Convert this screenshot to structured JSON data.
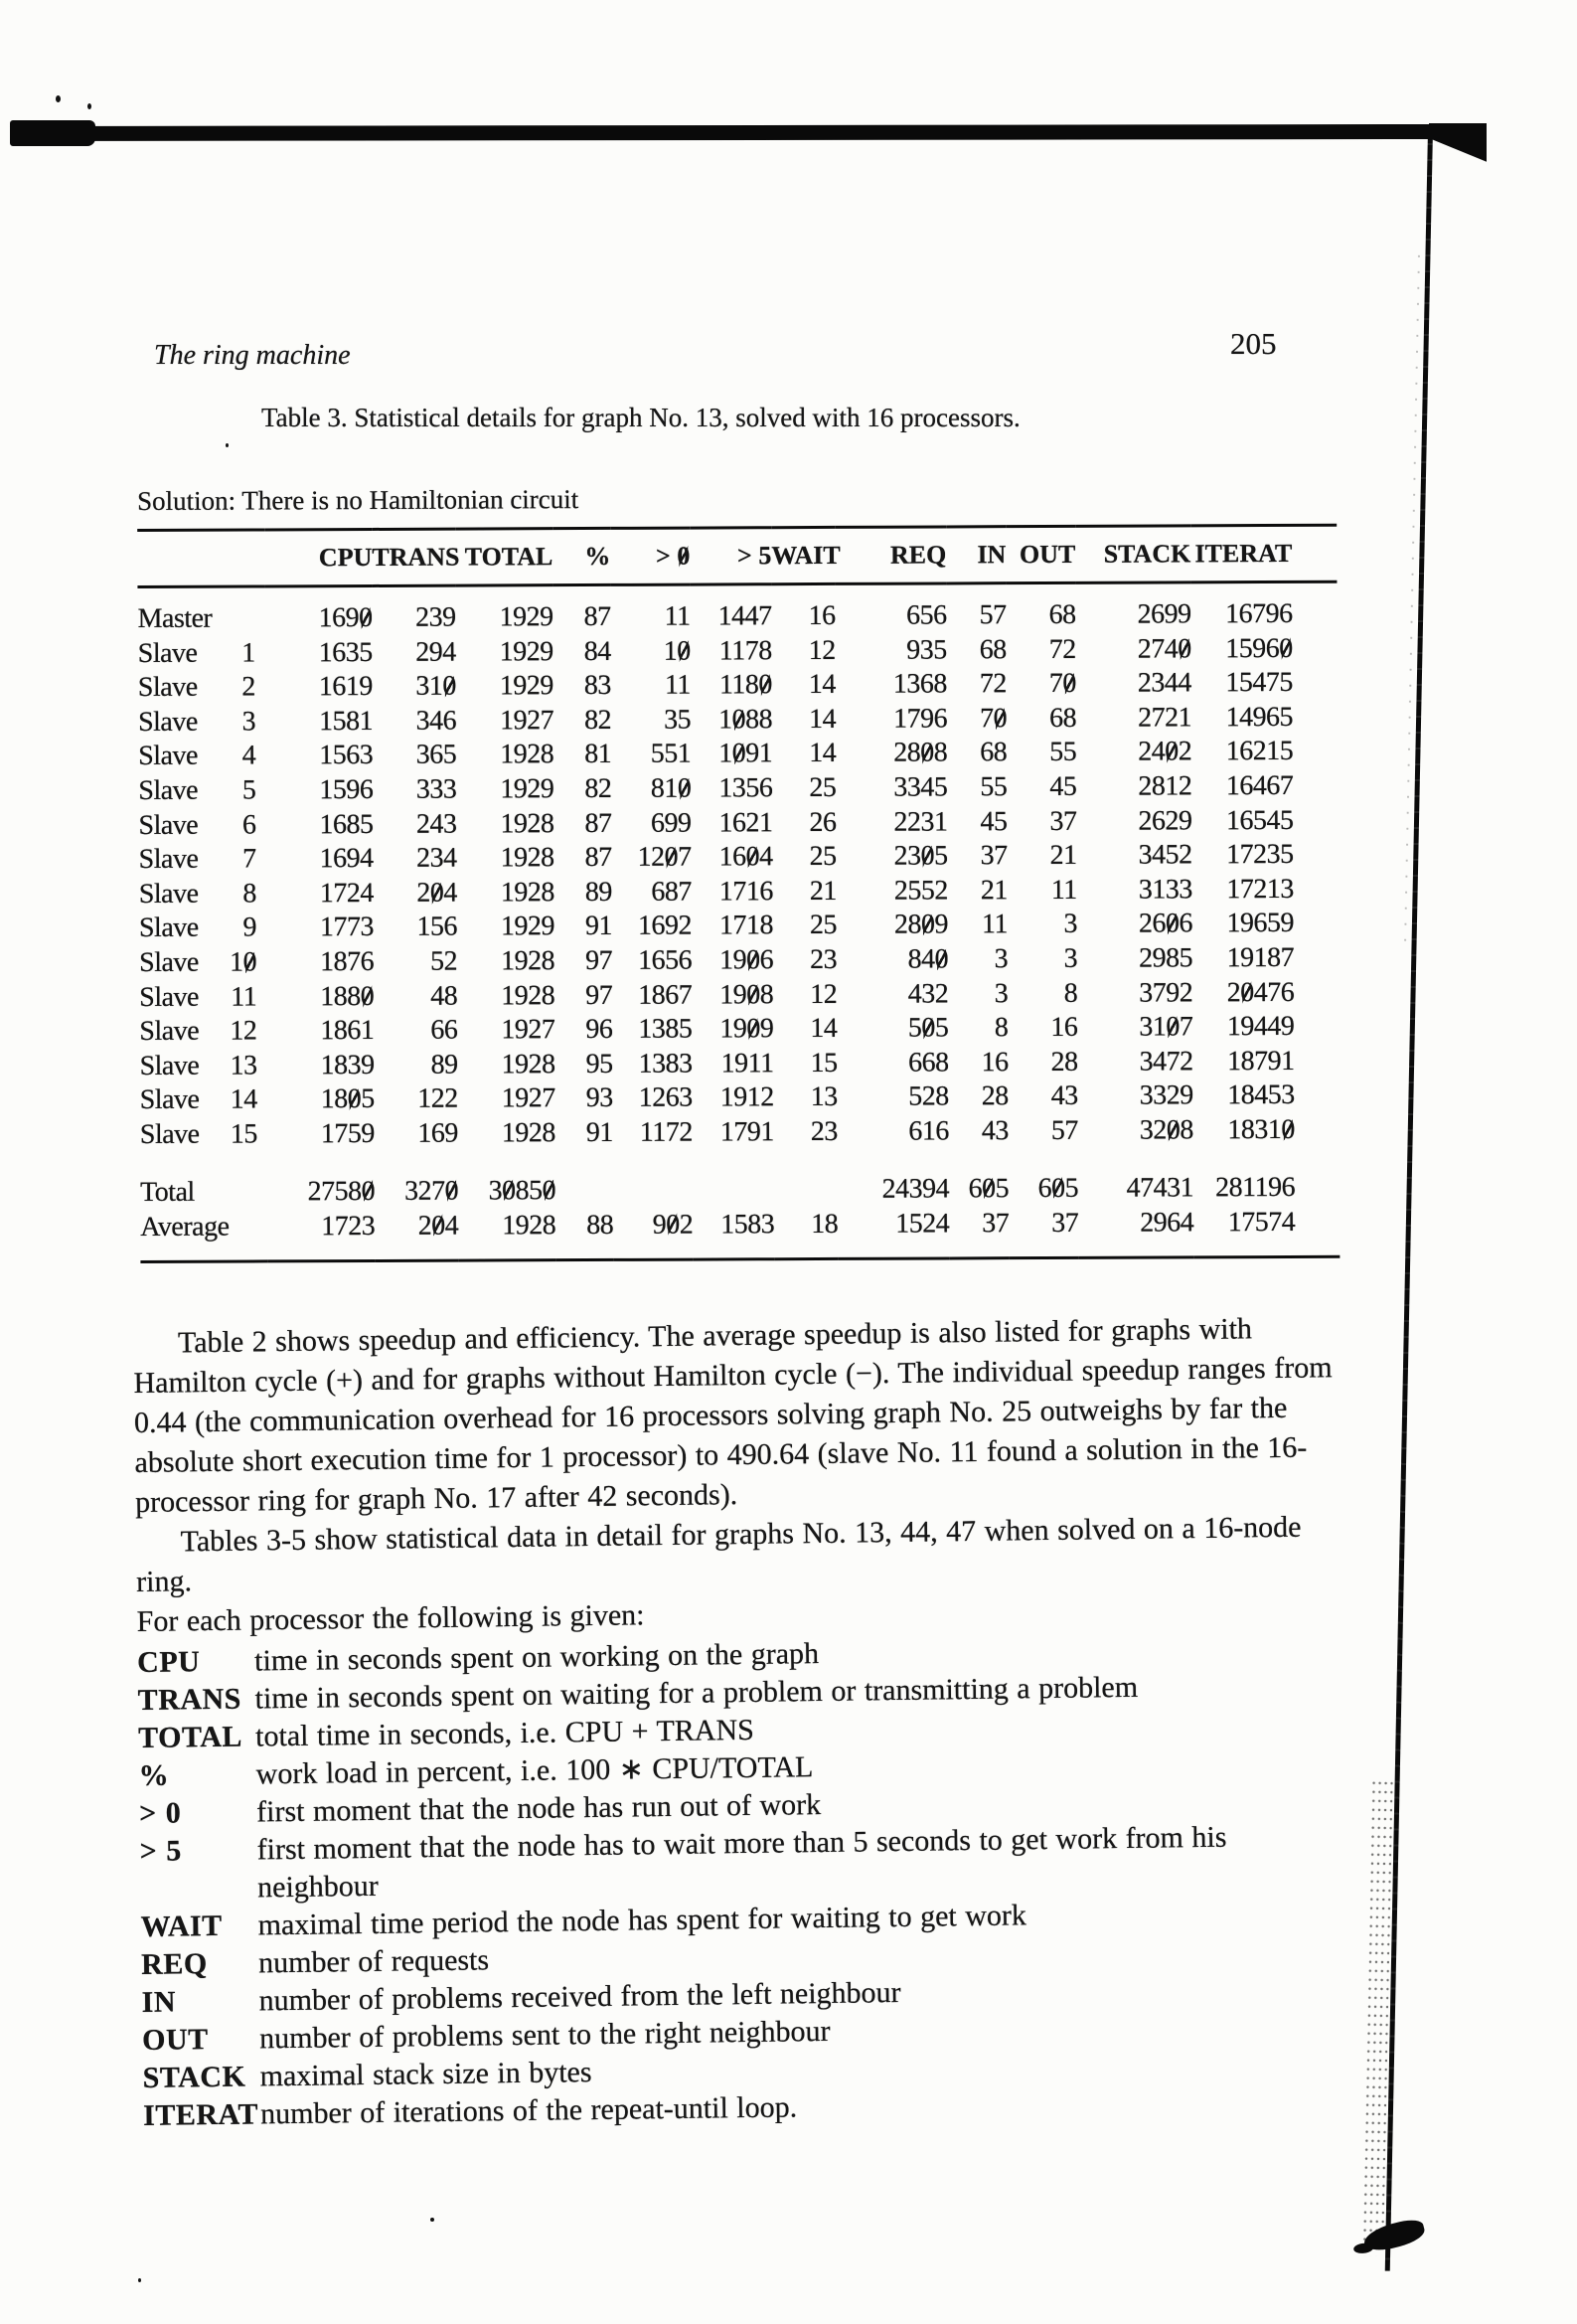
{
  "page": {
    "running_header": "The ring machine",
    "page_number": "205",
    "caption": "Table 3. Statistical details for graph No. 13, solved with 16 processors.",
    "solution_line": "Solution: There is no Hamiltonian circuit"
  },
  "table": {
    "columns": [
      "",
      "CPU",
      "TRANS",
      "TOTAL",
      "%",
      "> 0",
      "> 5",
      "WAIT",
      "REQ",
      "IN",
      "OUT",
      "STACK",
      "ITERAT"
    ],
    "rows": [
      {
        "name": "Master",
        "num": "",
        "values": [
          "1690",
          "239",
          "1929",
          "87",
          "11",
          "1447",
          "16",
          "656",
          "57",
          "68",
          "2699",
          "16796"
        ]
      },
      {
        "name": "Slave",
        "num": "1",
        "values": [
          "1635",
          "294",
          "1929",
          "84",
          "10",
          "1178",
          "12",
          "935",
          "68",
          "72",
          "2740",
          "15960"
        ]
      },
      {
        "name": "Slave",
        "num": "2",
        "values": [
          "1619",
          "310",
          "1929",
          "83",
          "11",
          "1180",
          "14",
          "1368",
          "72",
          "70",
          "2344",
          "15475"
        ]
      },
      {
        "name": "Slave",
        "num": "3",
        "values": [
          "1581",
          "346",
          "1927",
          "82",
          "35",
          "1088",
          "14",
          "1796",
          "70",
          "68",
          "2721",
          "14965"
        ]
      },
      {
        "name": "Slave",
        "num": "4",
        "values": [
          "1563",
          "365",
          "1928",
          "81",
          "551",
          "1091",
          "14",
          "2808",
          "68",
          "55",
          "2402",
          "16215"
        ]
      },
      {
        "name": "Slave",
        "num": "5",
        "values": [
          "1596",
          "333",
          "1929",
          "82",
          "810",
          "1356",
          "25",
          "3345",
          "55",
          "45",
          "2812",
          "16467"
        ]
      },
      {
        "name": "Slave",
        "num": "6",
        "values": [
          "1685",
          "243",
          "1928",
          "87",
          "699",
          "1621",
          "26",
          "2231",
          "45",
          "37",
          "2629",
          "16545"
        ]
      },
      {
        "name": "Slave",
        "num": "7",
        "values": [
          "1694",
          "234",
          "1928",
          "87",
          "1207",
          "1604",
          "25",
          "2305",
          "37",
          "21",
          "3452",
          "17235"
        ]
      },
      {
        "name": "Slave",
        "num": "8",
        "values": [
          "1724",
          "204",
          "1928",
          "89",
          "687",
          "1716",
          "21",
          "2552",
          "21",
          "11",
          "3133",
          "17213"
        ]
      },
      {
        "name": "Slave",
        "num": "9",
        "values": [
          "1773",
          "156",
          "1929",
          "91",
          "1692",
          "1718",
          "25",
          "2809",
          "11",
          "3",
          "2606",
          "19659"
        ]
      },
      {
        "name": "Slave",
        "num": "10",
        "values": [
          "1876",
          "52",
          "1928",
          "97",
          "1656",
          "1906",
          "23",
          "840",
          "3",
          "3",
          "2985",
          "19187"
        ]
      },
      {
        "name": "Slave",
        "num": "11",
        "values": [
          "1880",
          "48",
          "1928",
          "97",
          "1867",
          "1908",
          "12",
          "432",
          "3",
          "8",
          "3792",
          "20476"
        ]
      },
      {
        "name": "Slave",
        "num": "12",
        "values": [
          "1861",
          "66",
          "1927",
          "96",
          "1385",
          "1909",
          "14",
          "505",
          "8",
          "16",
          "3107",
          "19449"
        ]
      },
      {
        "name": "Slave",
        "num": "13",
        "values": [
          "1839",
          "89",
          "1928",
          "95",
          "1383",
          "1911",
          "15",
          "668",
          "16",
          "28",
          "3472",
          "18791"
        ]
      },
      {
        "name": "Slave",
        "num": "14",
        "values": [
          "1805",
          "122",
          "1927",
          "93",
          "1263",
          "1912",
          "13",
          "528",
          "28",
          "43",
          "3329",
          "18453"
        ]
      },
      {
        "name": "Slave",
        "num": "15",
        "values": [
          "1759",
          "169",
          "1928",
          "91",
          "1172",
          "1791",
          "23",
          "616",
          "43",
          "57",
          "3208",
          "18310"
        ]
      }
    ],
    "summary_rows": [
      {
        "name": "Total",
        "num": "",
        "values": [
          "27580",
          "3270",
          "30850",
          "",
          "",
          "",
          "",
          "24394",
          "605",
          "605",
          "47431",
          "281196"
        ]
      },
      {
        "name": "Average",
        "num": "",
        "values": [
          "1723",
          "204",
          "1928",
          "88",
          "902",
          "1583",
          "18",
          "1524",
          "37",
          "37",
          "2964",
          "17574"
        ]
      }
    ]
  },
  "paragraphs": {
    "p1": "Table 2 shows speedup and efficiency. The average speedup is also listed for graphs with Hamilton cycle (+) and for graphs without Hamilton cycle (−). The individual speedup ranges from 0.44 (the communication overhead for 16 processors solving graph No. 25 outweighs by far the absolute short execution time for 1 processor) to 490.64 (slave No. 11 found a solution in the 16-processor ring for graph No. 17 after 42 seconds).",
    "p2": "Tables 3-5 show statistical data in detail for graphs No. 13, 44, 47 when solved on a 16-node ring.",
    "p3": "For each processor the following is given:"
  },
  "definitions": [
    {
      "term": "CPU",
      "desc": "time in seconds spent on working on the graph"
    },
    {
      "term": "TRANS",
      "desc": "time in seconds spent on waiting for a problem or transmitting a problem"
    },
    {
      "term": "TOTAL",
      "desc": "total time in seconds, i.e. CPU + TRANS"
    },
    {
      "term": "%",
      "desc": "work load in percent, i.e. 100 ∗ CPU/TOTAL"
    },
    {
      "term": "> 0",
      "desc": "first moment that the node has run out of work"
    },
    {
      "term": "> 5",
      "desc": "first moment that the node has to wait more than 5 seconds to get work from his neighbour"
    },
    {
      "term": "WAIT",
      "desc": "maximal time period the node has spent for waiting to get work"
    },
    {
      "term": "REQ",
      "desc": "number of requests"
    },
    {
      "term": "IN",
      "desc": "number of problems received from the left neighbour"
    },
    {
      "term": "OUT",
      "desc": "number of problems sent to the right neighbour"
    },
    {
      "term": "STACK",
      "desc": "maximal stack size in bytes"
    },
    {
      "term": "ITERAT",
      "desc": "number of iterations of the repeat-until loop."
    }
  ]
}
